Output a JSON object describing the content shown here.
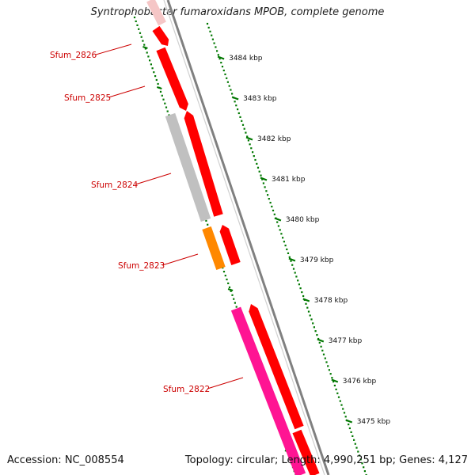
{
  "title": "Syntrophobacter fumaroxidans MPOB, complete genome",
  "footer": {
    "accession": "Accession: NC_008554",
    "summary": "Topology: circular; Length: 4,990,251 bp; Genes: 4,127"
  },
  "ticks": [
    "3484 kbp",
    "3483 kbp",
    "3482 kbp",
    "3481 kbp",
    "3480 kbp",
    "3479 kbp",
    "3478 kbp",
    "3477 kbp",
    "3476 kbp",
    "3475 kbp"
  ],
  "gene_labels": [
    "Sfum_2826",
    "Sfum_2825",
    "Sfum_2824",
    "Sfum_2823",
    "Sfum_2822"
  ],
  "colors": {
    "red_gene": "#ff0000",
    "grey_gene": "#c0c0c0",
    "orange_gene": "#ff8800",
    "pink_gene": "#ff1493",
    "faded_gene": "#f5c6c6",
    "backbone": "#808080",
    "ruler": "#007700",
    "label": "#cc0000"
  }
}
